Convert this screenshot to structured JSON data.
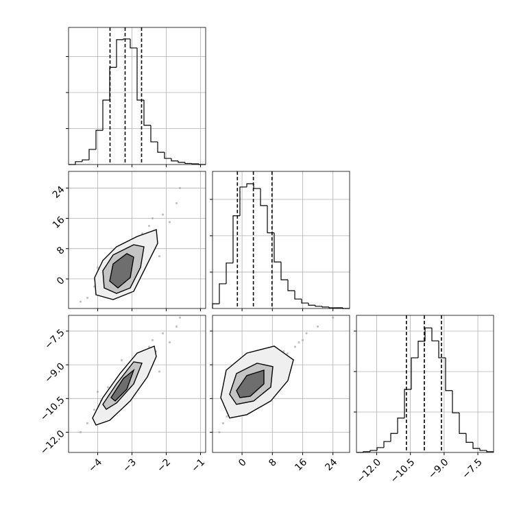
{
  "chart_data": [
    {
      "type": "histogram",
      "color": "#000000",
      "grid": true,
      "xtick_labels": false,
      "ytick_labels": false,
      "bins": [
        -4.85,
        -4.65,
        -4.45,
        -4.25,
        -4.05,
        -3.85,
        -3.65,
        -3.45,
        -3.25,
        -3.05,
        -2.85,
        -2.65,
        -2.45,
        -2.25,
        -2.05,
        -1.85,
        -1.65,
        -1.45,
        -1.25,
        -1.05,
        -0.85
      ],
      "counts": [
        0,
        0.08,
        0.13,
        0.42,
        0.95,
        1.79,
        2.7,
        3.47,
        3.49,
        3.24,
        1.79,
        1.09,
        0.63,
        0.34,
        0.17,
        0.1,
        0.06,
        0.03,
        0.02,
        0
      ],
      "quantiles": [
        -3.64,
        -3.2,
        -2.72
      ],
      "xlim": [
        -4.85,
        -0.85
      ],
      "xticks": [
        {
          "value": -4,
          "label": "−4"
        },
        {
          "value": -3,
          "label": "−3"
        },
        {
          "value": -2,
          "label": "−2"
        },
        {
          "value": -1,
          "label": "−1"
        }
      ],
      "ylim": [
        0,
        3.81
      ],
      "yticks": [
        1,
        2,
        3
      ]
    },
    {
      "type": "scatter",
      "color": "#999999",
      "grid": true,
      "xtick_labels": false,
      "ytick_labels": true,
      "x": [
        -4.3,
        -4.1,
        -3.9,
        -3.8,
        -3.7,
        -3.6,
        -3.5,
        -3.4,
        -3.3,
        -3.2,
        -3.1,
        -3.0,
        -2.9,
        -2.8,
        -2.7,
        -2.6,
        -2.5,
        -2.3,
        -2.1,
        -1.9,
        -1.7,
        -4.5,
        -3.6,
        -3.0,
        -2.4,
        -1.6,
        -4.0,
        -3.3,
        -2.2,
        -2.9
      ],
      "y": [
        -5,
        -2,
        1,
        -3,
        4,
        0,
        6,
        2,
        -1,
        5,
        8,
        3,
        10,
        7,
        12,
        9,
        14,
        11,
        17,
        15,
        20,
        -6,
        -4,
        1,
        16,
        24,
        3,
        9,
        6,
        -2
      ],
      "contours": [
        {
          "color": "#efefef",
          "x": [
            -4.05,
            -4.09,
            -3.85,
            -3.45,
            -2.85,
            -2.29,
            -2.25,
            -2.55,
            -2.95,
            -3.55
          ],
          "y": [
            -4.18,
            0.35,
            4.87,
            8.49,
            11.21,
            13.02,
            9.4,
            3.97,
            -3.27,
            -5.45
          ]
        },
        {
          "color": "#c4c4c4",
          "x": [
            -3.81,
            -3.85,
            -3.55,
            -2.95,
            -2.65,
            -2.75,
            -3.05,
            -3.45
          ],
          "y": [
            -2.37,
            2.16,
            6.33,
            9.04,
            8.49,
            3.06,
            -2.37,
            -3.82
          ]
        },
        {
          "color": "#6e6e6e",
          "x": [
            -3.65,
            -3.55,
            -3.15,
            -2.95,
            -3.05,
            -3.41
          ],
          "y": [
            -0.56,
            3.97,
            6.68,
            5.78,
            0.35,
            -2.37
          ]
        }
      ],
      "xlim": [
        -4.85,
        -0.85
      ],
      "xticks": [
        {
          "value": -4,
          "label": "−4"
        },
        {
          "value": -3,
          "label": "−3"
        },
        {
          "value": -2,
          "label": "−2"
        },
        {
          "value": -1,
          "label": "−1"
        }
      ],
      "ylim": [
        -7.8,
        28.4
      ],
      "yticks": [
        0,
        8,
        16,
        24
      ]
    },
    {
      "type": "histogram",
      "color": "#000000",
      "grid": true,
      "xtick_labels": false,
      "ytick_labels": false,
      "bins": [
        -7.8,
        -5.99,
        -4.18,
        -2.37,
        -0.56,
        1.25,
        3.06,
        4.87,
        6.68,
        8.49,
        10.3,
        12.11,
        13.92,
        15.73,
        17.54,
        19.35,
        21.16,
        22.97,
        24.78,
        26.59,
        28.4
      ],
      "counts": [
        0.13,
        0.68,
        1.25,
        2.55,
        3.34,
        3.43,
        3.3,
        2.83,
        2.08,
        1.28,
        0.79,
        0.49,
        0.26,
        0.15,
        0.09,
        0.06,
        0.04,
        0.02,
        0.02,
        0
      ],
      "quantiles": [
        -1.23,
        2.99,
        7.91
      ],
      "xlim": [
        -7.8,
        28.4
      ],
      "xticks": [
        0,
        8,
        16,
        24
      ],
      "ylim": [
        0,
        3.77
      ],
      "yticks": [
        1,
        2,
        3
      ]
    },
    {
      "type": "scatter",
      "color": "#999999",
      "grid": true,
      "xtick_labels": true,
      "ytick_labels": true,
      "x": [
        -4.3,
        -4.1,
        -3.9,
        -3.8,
        -3.7,
        -3.6,
        -3.5,
        -3.4,
        -3.3,
        -3.2,
        -3.1,
        -3.0,
        -2.9,
        -2.8,
        -2.7,
        -2.6,
        -2.5,
        -2.3,
        -2.1,
        -1.9,
        -1.7,
        -4.5,
        -3.6,
        -3.0,
        -2.4,
        -1.6,
        -4.0,
        -3.3,
        -2.2,
        -2.9
      ],
      "y": [
        -11.6,
        -11.0,
        -10.6,
        -11.1,
        -10.0,
        -10.6,
        -9.9,
        -10.5,
        -10.1,
        -9.5,
        -9.3,
        -9.8,
        -8.9,
        -9.3,
        -8.5,
        -9.0,
        -8.2,
        -8.4,
        -7.6,
        -8.0,
        -7.3,
        -12.0,
        -11.3,
        -9.0,
        -7.9,
        -6.9,
        -10.2,
        -8.8,
        -9.3,
        -10.0
      ],
      "contours": [
        {
          "color": "#efefef",
          "x": [
            -4.15,
            -3.85,
            -3.35,
            -2.85,
            -2.35,
            -2.29,
            -2.55,
            -3.05,
            -3.65,
            -4.05
          ],
          "y": [
            -11.37,
            -10.46,
            -9.39,
            -8.48,
            -8.17,
            -8.63,
            -9.54,
            -10.61,
            -11.47,
            -11.68
          ]
        },
        {
          "color": "#c4c4c4",
          "x": [
            -3.85,
            -3.45,
            -2.95,
            -2.71,
            -2.95,
            -3.45,
            -3.75
          ],
          "y": [
            -10.76,
            -9.85,
            -8.87,
            -8.93,
            -9.85,
            -10.7,
            -10.98
          ]
        },
        {
          "color": "#6e6e6e",
          "x": [
            -3.61,
            -3.25,
            -2.95,
            -3.15,
            -3.49
          ],
          "y": [
            -10.46,
            -9.61,
            -9.24,
            -10.09,
            -10.61
          ]
        }
      ],
      "xlim": [
        -4.85,
        -0.85
      ],
      "xticks": [
        {
          "value": -4,
          "label": "−4"
        },
        {
          "value": -3,
          "label": "−3"
        },
        {
          "value": -2,
          "label": "−2"
        },
        {
          "value": -1,
          "label": "−1"
        }
      ],
      "ylim": [
        -12.9,
        -6.8
      ],
      "yticks": [
        {
          "value": -12,
          "label": "−12.0"
        },
        {
          "value": -10.5,
          "label": "−10.5"
        },
        {
          "value": -9,
          "label": "−9.0"
        },
        {
          "value": -7.5,
          "label": "−7.5"
        }
      ]
    },
    {
      "type": "scatter",
      "color": "#999999",
      "grid": true,
      "xtick_labels": true,
      "ytick_labels": false,
      "x": [
        -5,
        -2,
        1,
        -3,
        4,
        0,
        6,
        2,
        -1,
        5,
        8,
        3,
        10,
        7,
        12,
        9,
        14,
        11,
        17,
        15,
        20,
        -6,
        -4,
        1,
        16,
        24,
        3,
        9,
        6,
        -2
      ],
      "y": [
        -11.6,
        -11.0,
        -10.6,
        -11.1,
        -10.0,
        -10.6,
        -9.9,
        -10.5,
        -10.1,
        -9.5,
        -9.3,
        -9.8,
        -8.9,
        -9.3,
        -8.5,
        -9.0,
        -8.2,
        -8.4,
        -7.6,
        -8.0,
        -7.3,
        -12.0,
        -11.3,
        -9.0,
        -7.9,
        -6.9,
        -10.2,
        -8.8,
        -9.3,
        -10.0
      ],
      "contours": [
        {
          "color": "#efefef",
          "x": [
            -5.63,
            -4.18,
            1.25,
            8.49,
            13.56,
            12.11,
            7.58,
            1.25,
            -3.28
          ],
          "y": [
            -10.46,
            -9.24,
            -8.48,
            -8.17,
            -8.78,
            -9.7,
            -10.61,
            -11.22,
            -11.37
          ]
        },
        {
          "color": "#c4c4c4",
          "x": [
            -3.28,
            -1.47,
            3.96,
            8.13,
            7.58,
            3.06,
            -1.47
          ],
          "y": [
            -10.31,
            -9.39,
            -8.93,
            -9.08,
            -9.99,
            -10.61,
            -10.76
          ]
        },
        {
          "color": "#6e6e6e",
          "x": [
            -1.47,
            1.25,
            5.77,
            5.77,
            2.15,
            -0.56
          ],
          "y": [
            -10.15,
            -9.48,
            -9.24,
            -9.85,
            -10.4,
            -10.46
          ]
        }
      ],
      "xlim": [
        -7.8,
        28.4
      ],
      "xticks": [
        0,
        8,
        16,
        24
      ],
      "ylim": [
        -12.9,
        -6.8
      ],
      "yticks": [
        {
          "value": -12,
          "label": "−12.0"
        },
        {
          "value": -10.5,
          "label": "−10.5"
        },
        {
          "value": -9,
          "label": "−9.0"
        },
        {
          "value": -7.5,
          "label": "−7.5"
        }
      ]
    },
    {
      "type": "histogram",
      "color": "#000000",
      "grid": true,
      "xtick_labels": true,
      "ytick_labels": false,
      "bins": [
        -12.9,
        -12.595,
        -12.29,
        -11.985,
        -11.68,
        -11.375,
        -11.07,
        -10.765,
        -10.46,
        -10.155,
        -9.85,
        -9.545,
        -9.24,
        -8.935,
        -8.63,
        -8.325,
        -8.02,
        -7.715,
        -7.41,
        -7.105,
        -6.8
      ],
      "counts": [
        0,
        0.02,
        0.05,
        0.12,
        0.27,
        0.47,
        0.85,
        1.56,
        2.34,
        2.75,
        3.08,
        2.76,
        2.34,
        1.53,
        0.98,
        0.47,
        0.25,
        0.1,
        0.05,
        0.02
      ],
      "quantiles": [
        -10.68,
        -9.88,
        -9.12
      ],
      "xlim": [
        -12.9,
        -6.8
      ],
      "xticks": [
        {
          "value": -12,
          "label": "−12.0"
        },
        {
          "value": -10.5,
          "label": "−10.5"
        },
        {
          "value": -9,
          "label": "−9.0"
        },
        {
          "value": -7.5,
          "label": "−7.5"
        }
      ],
      "ylim": [
        0,
        3.39
      ],
      "yticks": [
        1,
        2,
        3
      ]
    }
  ]
}
